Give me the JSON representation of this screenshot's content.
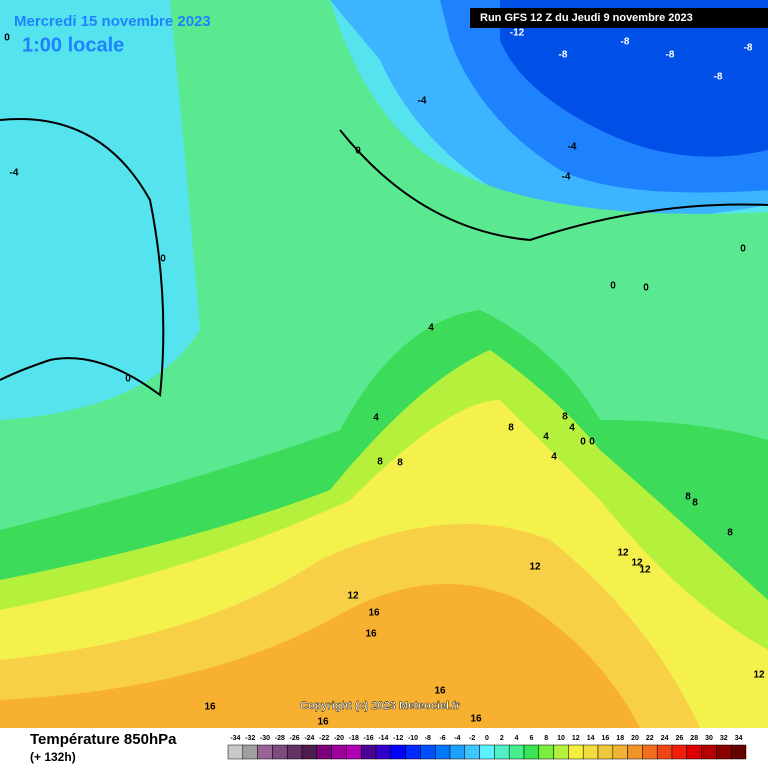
{
  "header": {
    "date": "Mercredi 15 novembre 2023",
    "time": "1:00 locale",
    "run": "Run GFS 12 Z du Jeudi 9 novembre 2023"
  },
  "map_labels": [
    0,
    -12,
    -8,
    -8,
    -8,
    -8,
    -8,
    -4,
    -4,
    -4,
    -4,
    0,
    0,
    0,
    0,
    0,
    0,
    4,
    4,
    4,
    4,
    4,
    8,
    8,
    8,
    8,
    8,
    8,
    8,
    0,
    0,
    12,
    12,
    12,
    12,
    12,
    12,
    16,
    16,
    16,
    16,
    16,
    16
  ],
  "footer": {
    "title": "Température 850hPa",
    "lead": "(+ 132h)",
    "copyright": "Copyright (c) 2023 Meteociel.fr"
  },
  "colorbar": {
    "ticks": [
      -34,
      -32,
      -30,
      -28,
      -26,
      -24,
      -22,
      -20,
      -18,
      -16,
      -14,
      -12,
      -10,
      -8,
      -6,
      -4,
      -2,
      0,
      2,
      4,
      6,
      8,
      10,
      12,
      14,
      16,
      18,
      20,
      22,
      24,
      26,
      28,
      30,
      32,
      34
    ],
    "colors": [
      "#c8c8c8",
      "#a0a0a0",
      "#966496",
      "#7d4b7d",
      "#643264",
      "#4b1e4b",
      "#7d007d",
      "#9b009b",
      "#b400b4",
      "#4b0096",
      "#3200c8",
      "#0000ff",
      "#0028ff",
      "#0050ff",
      "#0078ff",
      "#1ea0ff",
      "#3cc8ff",
      "#5af0ff",
      "#50f0c8",
      "#46f08c",
      "#3ce650",
      "#78f03c",
      "#b4f03c",
      "#f0f03c",
      "#f0dc3c",
      "#f0c83c",
      "#f0b432",
      "#f09628",
      "#f06e1e",
      "#f04614",
      "#f01e0a",
      "#dc0000",
      "#b40000",
      "#8c0000",
      "#640000"
    ]
  }
}
